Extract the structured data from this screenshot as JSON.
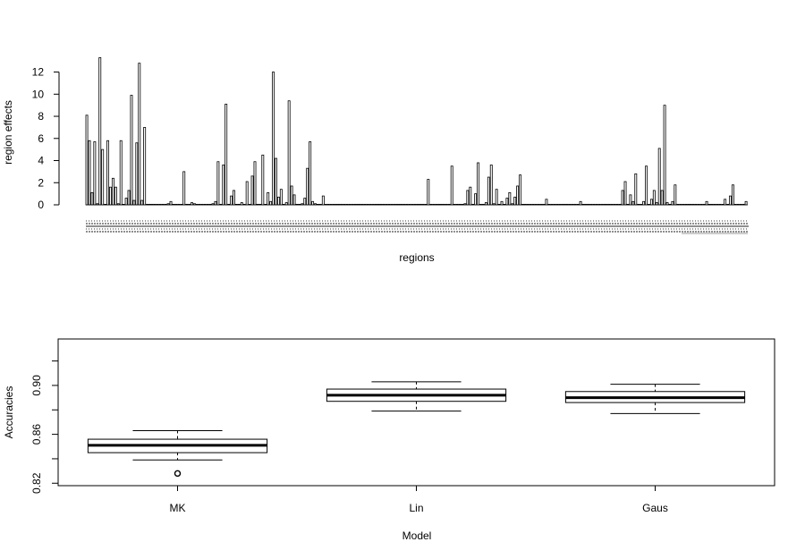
{
  "chart_data": [
    {
      "type": "bar",
      "xlabel": "regions",
      "ylabel": "region effects",
      "ylim": [
        0,
        13.5
      ],
      "yticks": [
        0,
        2,
        4,
        6,
        8,
        10,
        12
      ],
      "yticks_labels": [
        "0",
        "2",
        "4",
        "6",
        "8",
        "10",
        "12"
      ],
      "grid": false,
      "bar_fill": "#ffffff",
      "bar_stroke": "#000000",
      "x_tick_labels_note": "",
      "values": [
        8.1,
        5.8,
        1.1,
        5.7,
        0.1,
        13.3,
        5.0,
        0.0,
        5.8,
        1.6,
        2.4,
        1.6,
        0.1,
        5.8,
        0.0,
        0.6,
        1.3,
        9.9,
        0.4,
        5.6,
        12.8,
        0.4,
        7.0,
        0.0,
        0.0,
        0.0,
        0.0,
        0.0,
        0.0,
        0.0,
        0.0,
        0.1,
        0.3,
        0.0,
        0.0,
        0.0,
        0.0,
        3.0,
        0.0,
        0.0,
        0.2,
        0.1,
        0.0,
        0.0,
        0.0,
        0.0,
        0.0,
        0.0,
        0.1,
        0.3,
        3.9,
        0.0,
        3.6,
        9.1,
        0.0,
        0.8,
        1.3,
        0.0,
        0.0,
        0.2,
        0.0,
        2.1,
        0.0,
        2.6,
        3.9,
        0.0,
        0.0,
        4.5,
        0.0,
        1.1,
        0.3,
        12.0,
        4.2,
        0.7,
        1.4,
        0.0,
        0.2,
        9.4,
        1.7,
        0.9,
        0.0,
        0.0,
        0.1,
        0.6,
        3.3,
        5.7,
        0.3,
        0.1,
        0.0,
        0.0,
        0.8,
        0.0,
        0.0,
        0.0,
        0.0,
        0.0,
        0.0,
        0.0,
        0.0,
        0.0,
        0.0,
        0.0,
        0.0,
        0.0,
        0.0,
        0.0,
        0.0,
        0.0,
        0.0,
        0.0,
        0.0,
        0.0,
        0.0,
        0.0,
        0.0,
        0.0,
        0.0,
        0.0,
        0.0,
        0.0,
        0.0,
        0.0,
        0.0,
        0.0,
        0.0,
        0.0,
        0.0,
        0.0,
        0.0,
        0.0,
        2.3,
        0.0,
        0.0,
        0.0,
        0.0,
        0.0,
        0.0,
        0.0,
        0.0,
        3.5,
        0.0,
        0.0,
        0.0,
        0.0,
        0.1,
        1.3,
        1.6,
        0.0,
        1.0,
        3.8,
        0.0,
        0.0,
        0.2,
        2.5,
        3.6,
        0.1,
        1.4,
        0.0,
        0.3,
        0.0,
        0.6,
        1.1,
        0.1,
        0.7,
        1.7,
        2.7,
        0.0,
        0.0,
        0.0,
        0.0,
        0.0,
        0.0,
        0.0,
        0.0,
        0.0,
        0.5,
        0.0,
        0.0,
        0.0,
        0.0,
        0.0,
        0.0,
        0.0,
        0.0,
        0.0,
        0.0,
        0.0,
        0.0,
        0.3,
        0.0,
        0.0,
        0.0,
        0.0,
        0.0,
        0.0,
        0.0,
        0.0,
        0.0,
        0.0,
        0.0,
        0.0,
        0.0,
        0.0,
        0.0,
        1.3,
        2.1,
        0.0,
        0.9,
        0.3,
        2.8,
        0.0,
        0.0,
        0.3,
        3.5,
        0.0,
        0.5,
        1.3,
        0.2,
        5.1,
        1.3,
        9.0,
        0.2,
        0.0,
        0.3,
        1.8,
        0.0,
        0.0,
        0.0,
        0.0,
        0.0,
        0.0,
        0.0,
        0.0,
        0.0,
        0.0,
        0.0,
        0.3,
        0.0,
        0.0,
        0.0,
        0.0,
        0.0,
        0.0,
        0.5,
        0.0,
        0.8,
        1.8,
        0.0,
        0.0,
        0.0,
        0.0,
        0.3
      ]
    },
    {
      "type": "boxplot",
      "xlabel": "Model",
      "ylabel": "Accuracies",
      "categories": [
        "MK",
        "Lin",
        "Gaus"
      ],
      "ylim": [
        0.818,
        0.938
      ],
      "yticks": [
        0.82,
        0.86,
        0.9
      ],
      "yticks_labels": [
        "0.82",
        "0.86",
        "0.90"
      ],
      "grid": false,
      "boxes": [
        {
          "name": "MK",
          "whisker_low": 0.839,
          "q1": 0.845,
          "median": 0.851,
          "q3": 0.856,
          "whisker_high": 0.863,
          "outliers": [
            0.828
          ]
        },
        {
          "name": "Lin",
          "whisker_low": 0.879,
          "q1": 0.887,
          "median": 0.892,
          "q3": 0.897,
          "whisker_high": 0.903,
          "outliers": []
        },
        {
          "name": "Gaus",
          "whisker_low": 0.877,
          "q1": 0.886,
          "median": 0.89,
          "q3": 0.895,
          "whisker_high": 0.901,
          "outliers": []
        }
      ]
    }
  ]
}
